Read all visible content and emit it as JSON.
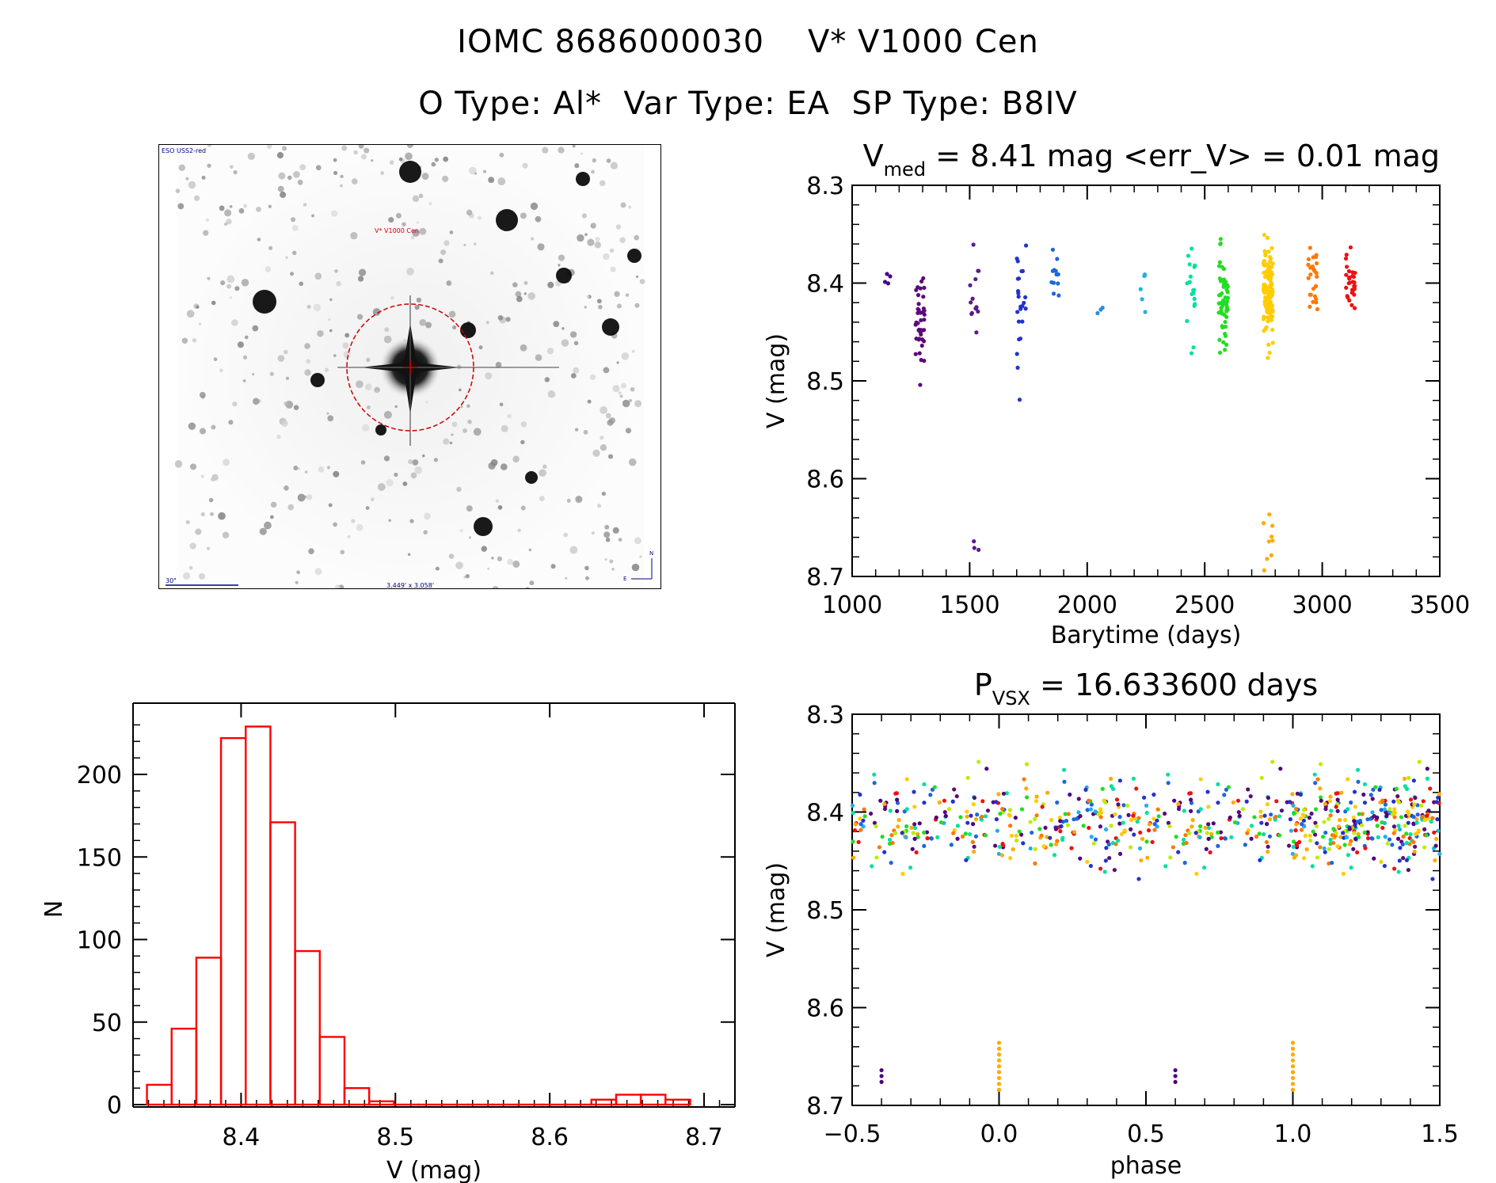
{
  "header": {
    "title_line1": "IOMC 8686000030    V* V1000 Cen",
    "title_line2": "O Type: Al*  Var Type: EA  SP Type: B8IV"
  },
  "finder_chart": {
    "top_left_label": "ESO USS2-red",
    "target_label": "V* V1000 Cen",
    "scale_label": "30\"",
    "fov_label": "3.449' x 3.058'",
    "north_label": "N",
    "east_label": "E"
  },
  "colors": {
    "histogram": "#ff0000",
    "finder_circle": "#cc0000",
    "finder_text": "#000080"
  },
  "chart_data": [
    {
      "type": "scatter",
      "name": "light-curve",
      "title_main": "V",
      "title_sub": "med",
      "title_rest": " = 8.41 mag <err_V> = 0.01 mag",
      "xlabel": "Barytime (days)",
      "ylabel": "V (mag)",
      "xlim": [
        1000,
        3500
      ],
      "ylim": [
        8.7,
        8.3
      ],
      "x_ticks": [
        1000,
        1500,
        2000,
        2500,
        3000,
        3500
      ],
      "y_ticks": [
        8.3,
        8.4,
        8.5,
        8.6,
        8.7
      ],
      "y_tick_labels": [
        "8.3",
        "8.4",
        "8.5",
        "8.6",
        "8.7"
      ],
      "clusters": [
        {
          "x": 1160,
          "y": 8.4,
          "spread": 0.012,
          "n": 4,
          "color": "#4b0082"
        },
        {
          "x": 1290,
          "y": 8.44,
          "spread": 0.022,
          "n": 40,
          "color": "#5b0a7a"
        },
        {
          "x": 1520,
          "y": 8.41,
          "spread": 0.035,
          "n": 14,
          "color": "#5a1a8f"
        },
        {
          "x": 1520,
          "y": 8.67,
          "spread": 0.006,
          "n": 3,
          "color": "#5a1a8f"
        },
        {
          "x": 1720,
          "y": 8.42,
          "spread": 0.03,
          "n": 24,
          "color": "#2233cc"
        },
        {
          "x": 1860,
          "y": 8.39,
          "spread": 0.018,
          "n": 12,
          "color": "#1e66dd"
        },
        {
          "x": 2060,
          "y": 8.43,
          "spread": 0.006,
          "n": 3,
          "color": "#2a8be0"
        },
        {
          "x": 2230,
          "y": 8.4,
          "spread": 0.012,
          "n": 6,
          "color": "#22b0e6"
        },
        {
          "x": 2440,
          "y": 8.41,
          "spread": 0.03,
          "n": 18,
          "color": "#00e0a0"
        },
        {
          "x": 2580,
          "y": 8.42,
          "spread": 0.025,
          "n": 55,
          "color": "#22dd22"
        },
        {
          "x": 2770,
          "y": 8.41,
          "spread": 0.025,
          "n": 110,
          "color": "#ffcc00"
        },
        {
          "x": 2770,
          "y": 8.66,
          "spread": 0.016,
          "n": 9,
          "color": "#ffaa00"
        },
        {
          "x": 2960,
          "y": 8.4,
          "spread": 0.015,
          "n": 25,
          "color": "#ff7700"
        },
        {
          "x": 3120,
          "y": 8.4,
          "spread": 0.015,
          "n": 30,
          "color": "#ee1111"
        }
      ]
    },
    {
      "type": "scatter",
      "name": "phased-light-curve",
      "title_main": "P",
      "title_sub": "VSX",
      "title_rest": " = 16.633600 days",
      "xlabel": "phase",
      "ylabel": "V (mag)",
      "xlim": [
        -0.5,
        1.5
      ],
      "ylim": [
        8.7,
        8.3
      ],
      "x_ticks": [
        -0.5,
        0.0,
        0.5,
        1.0,
        1.5
      ],
      "x_tick_labels": [
        "−0.5",
        "0.0",
        "0.5",
        "1.0",
        "1.5"
      ],
      "y_ticks": [
        8.3,
        8.4,
        8.5,
        8.6,
        8.7
      ],
      "y_tick_labels": [
        "8.3",
        "8.4",
        "8.5",
        "8.6",
        "8.7"
      ],
      "period_days": 16.6336,
      "points_main": {
        "n": 300,
        "y": 8.41,
        "spread": 0.022
      },
      "palette": [
        "#4b0082",
        "#5b0a7a",
        "#2233cc",
        "#1e66dd",
        "#22b0e6",
        "#00e0a0",
        "#22dd22",
        "#bbee00",
        "#ffcc00",
        "#ffaa00",
        "#ff7700",
        "#ee1111"
      ],
      "faint_points": [
        {
          "x": -0.4,
          "y": 8.67,
          "color": "#4b0082",
          "n": 3
        },
        {
          "x": 0.0,
          "y": 8.66,
          "color": "#ffaa00",
          "n": 9
        },
        {
          "x": 0.6,
          "y": 8.67,
          "color": "#4b0082",
          "n": 3
        },
        {
          "x": 1.0,
          "y": 8.66,
          "color": "#ffaa00",
          "n": 9
        }
      ]
    },
    {
      "type": "bar",
      "name": "magnitude-histogram",
      "xlabel": "V (mag)",
      "ylabel": "N",
      "xlim": [
        8.33,
        8.72
      ],
      "ylim": [
        0,
        235
      ],
      "x_ticks": [
        8.4,
        8.5,
        8.6,
        8.7
      ],
      "x_tick_labels": [
        "8.4",
        "8.5",
        "8.6",
        "8.7"
      ],
      "y_ticks": [
        0,
        50,
        100,
        150,
        200
      ],
      "bin_edges": [
        8.339,
        8.355,
        8.371,
        8.387,
        8.403,
        8.419,
        8.435,
        8.451,
        8.467,
        8.483,
        8.499,
        8.515,
        8.531,
        8.547,
        8.563,
        8.579,
        8.595,
        8.611,
        8.627,
        8.643,
        8.659,
        8.675,
        8.691
      ],
      "values": [
        12,
        46,
        89,
        222,
        229,
        171,
        93,
        41,
        10,
        2,
        0,
        0,
        0,
        0,
        0,
        0,
        0,
        0,
        3,
        6,
        6,
        3
      ]
    }
  ]
}
